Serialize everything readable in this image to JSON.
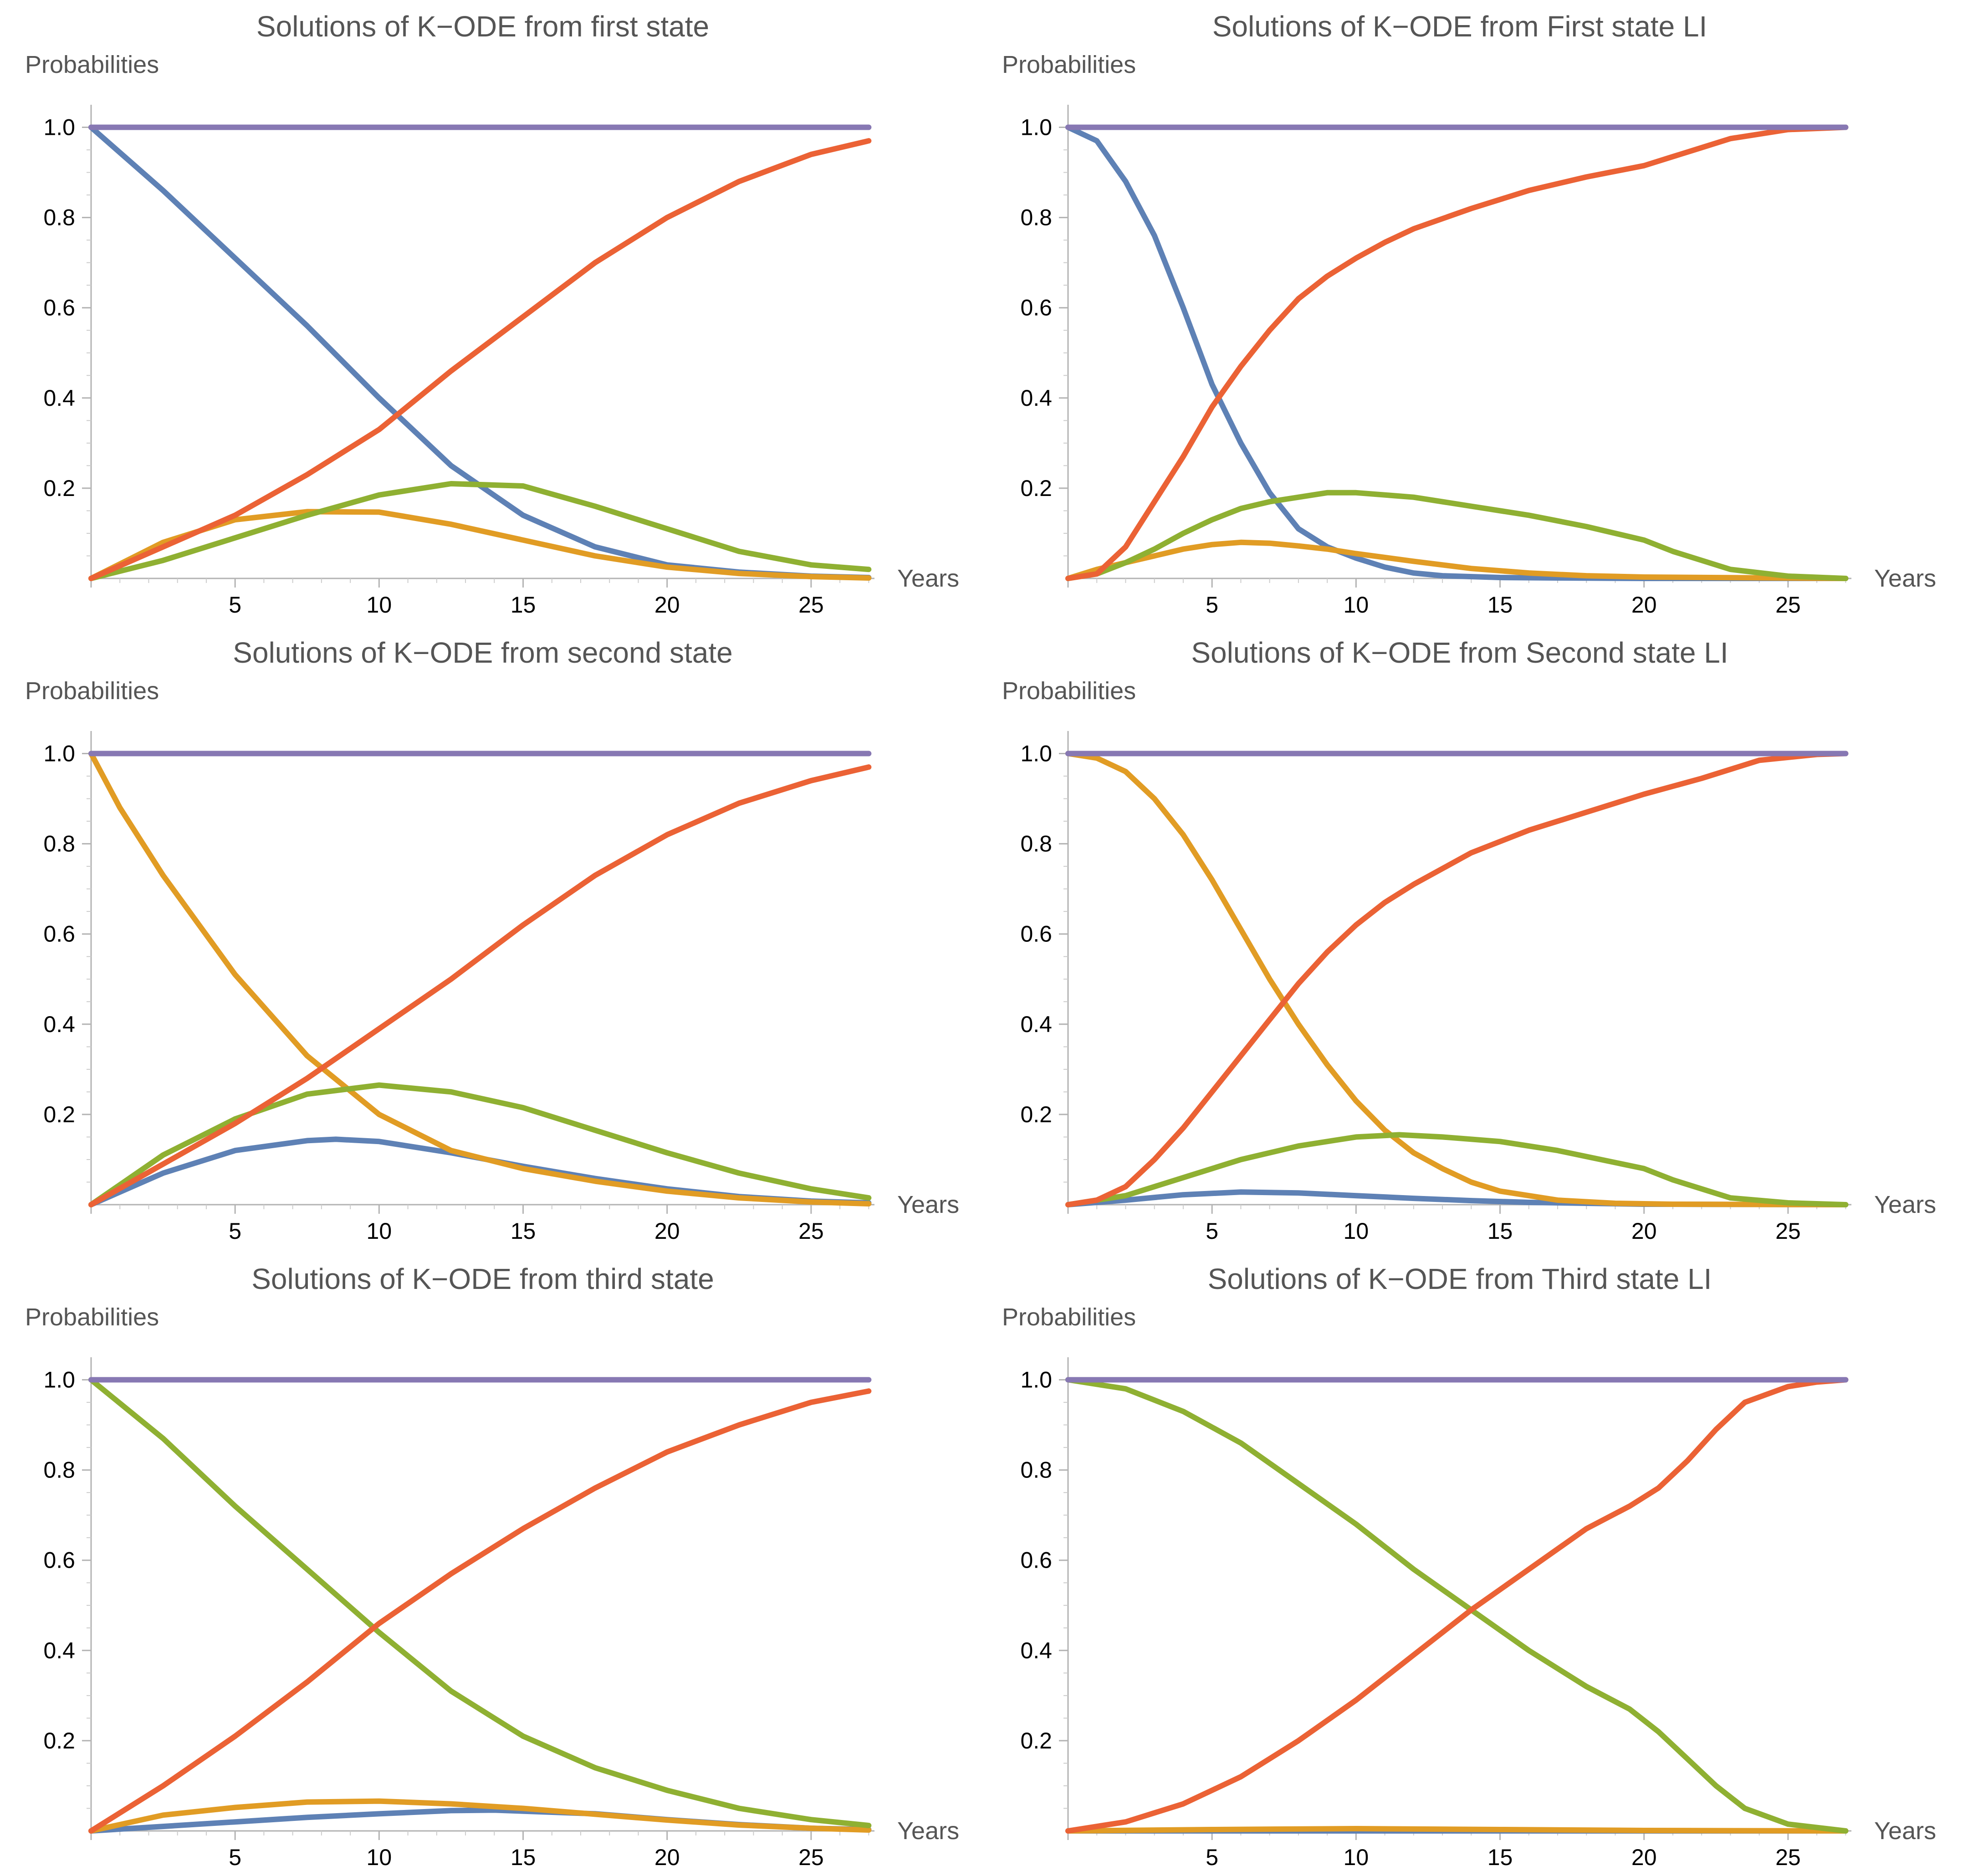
{
  "chart_data": [
    {
      "type": "line",
      "title": "Solutions of K−ODE from first state",
      "xlabel": "Years",
      "ylabel": "Probabilities",
      "xlim": [
        0,
        27.2
      ],
      "ylim": [
        0,
        1.05
      ],
      "xticks": [
        5,
        10,
        15,
        20,
        25
      ],
      "yticks": [
        0.2,
        0.4,
        0.6,
        0.8,
        1.0
      ],
      "xtick_labels": [
        "5",
        "10",
        "15",
        "20",
        "25"
      ],
      "ytick_labels": [
        "0.2",
        "0.4",
        "0.6",
        "0.8",
        "1.0"
      ],
      "series": [
        {
          "name": "blue",
          "color": "#5e81b5",
          "x": [
            0,
            2.5,
            5,
            7.5,
            10,
            12.5,
            15,
            17.5,
            20,
            22.5,
            25,
            27
          ],
          "y": [
            1.0,
            0.86,
            0.71,
            0.56,
            0.4,
            0.25,
            0.14,
            0.07,
            0.03,
            0.014,
            0.005,
            0.002
          ]
        },
        {
          "name": "orange",
          "color": "#e19c24",
          "x": [
            0,
            2.5,
            5,
            7.5,
            10,
            12.5,
            15,
            17.5,
            20,
            22.5,
            25,
            27
          ],
          "y": [
            0,
            0.08,
            0.13,
            0.148,
            0.147,
            0.12,
            0.085,
            0.05,
            0.025,
            0.011,
            0.004,
            0.001
          ]
        },
        {
          "name": "green",
          "color": "#8fb032",
          "x": [
            0,
            2.5,
            5,
            7.5,
            10,
            12.5,
            15,
            17.5,
            20,
            22.5,
            25,
            27
          ],
          "y": [
            0,
            0.04,
            0.09,
            0.14,
            0.185,
            0.21,
            0.205,
            0.16,
            0.11,
            0.06,
            0.03,
            0.02
          ]
        },
        {
          "name": "red",
          "color": "#eb6235",
          "x": [
            0,
            2.5,
            5,
            7.5,
            10,
            12.5,
            15,
            17.5,
            20,
            22.5,
            25,
            27
          ],
          "y": [
            0,
            0.07,
            0.14,
            0.23,
            0.33,
            0.46,
            0.58,
            0.7,
            0.8,
            0.88,
            0.94,
            0.97
          ]
        },
        {
          "name": "purple",
          "color": "#8778b3",
          "x": [
            0,
            27
          ],
          "y": [
            1.0,
            1.0
          ]
        }
      ]
    },
    {
      "type": "line",
      "title": "Solutions of K−ODE from First state LI",
      "xlabel": "Years",
      "ylabel": "Probabilities",
      "xlim": [
        0,
        27.2
      ],
      "ylim": [
        0,
        1.05
      ],
      "xticks": [
        5,
        10,
        15,
        20,
        25
      ],
      "yticks": [
        0.2,
        0.4,
        0.6,
        0.8,
        1.0
      ],
      "xtick_labels": [
        "5",
        "10",
        "15",
        "20",
        "25"
      ],
      "ytick_labels": [
        "0.2",
        "0.4",
        "0.6",
        "0.8",
        "1.0"
      ],
      "series": [
        {
          "name": "blue",
          "color": "#5e81b5",
          "x": [
            0,
            1,
            2,
            3,
            4,
            5,
            6,
            7,
            8,
            9,
            10,
            11,
            12,
            13,
            15,
            17,
            20,
            27
          ],
          "y": [
            1.0,
            0.97,
            0.88,
            0.76,
            0.6,
            0.43,
            0.3,
            0.19,
            0.11,
            0.07,
            0.045,
            0.025,
            0.012,
            0.006,
            0.002,
            0.001,
            0,
            0
          ]
        },
        {
          "name": "orange",
          "color": "#e19c24",
          "x": [
            0,
            1,
            2,
            3,
            4,
            5,
            6,
            7,
            8,
            9,
            10,
            12,
            14,
            16,
            18,
            20,
            27
          ],
          "y": [
            0,
            0.02,
            0.035,
            0.05,
            0.065,
            0.075,
            0.08,
            0.078,
            0.072,
            0.065,
            0.055,
            0.038,
            0.022,
            0.012,
            0.006,
            0.003,
            0
          ]
        },
        {
          "name": "green",
          "color": "#8fb032",
          "x": [
            0,
            1,
            2,
            3,
            4,
            5,
            6,
            7,
            8,
            9,
            10,
            12,
            14,
            16,
            18,
            20,
            21,
            23,
            25,
            27
          ],
          "y": [
            0,
            0.01,
            0.035,
            0.065,
            0.1,
            0.13,
            0.155,
            0.17,
            0.18,
            0.19,
            0.19,
            0.18,
            0.16,
            0.14,
            0.115,
            0.085,
            0.06,
            0.02,
            0.005,
            0
          ]
        },
        {
          "name": "red",
          "color": "#eb6235",
          "x": [
            0,
            1,
            2,
            3,
            4,
            5,
            6,
            7,
            8,
            9,
            10,
            11,
            12,
            14,
            16,
            18,
            20,
            21,
            22,
            23,
            25,
            27
          ],
          "y": [
            0,
            0.01,
            0.07,
            0.17,
            0.27,
            0.38,
            0.47,
            0.55,
            0.62,
            0.67,
            0.71,
            0.745,
            0.775,
            0.82,
            0.86,
            0.89,
            0.915,
            0.935,
            0.955,
            0.975,
            0.995,
            1.0
          ]
        },
        {
          "name": "purple",
          "color": "#8778b3",
          "x": [
            0,
            27
          ],
          "y": [
            1.0,
            1.0
          ]
        }
      ]
    },
    {
      "type": "line",
      "title": "Solutions of K−ODE from second state",
      "xlabel": "Years",
      "ylabel": "Probabilities",
      "xlim": [
        0,
        27.2
      ],
      "ylim": [
        0,
        1.05
      ],
      "xticks": [
        5,
        10,
        15,
        20,
        25
      ],
      "yticks": [
        0.2,
        0.4,
        0.6,
        0.8,
        1.0
      ],
      "xtick_labels": [
        "5",
        "10",
        "15",
        "20",
        "25"
      ],
      "ytick_labels": [
        "0.2",
        "0.4",
        "0.6",
        "0.8",
        "1.0"
      ],
      "series": [
        {
          "name": "blue",
          "color": "#5e81b5",
          "x": [
            0,
            2.5,
            5,
            7.5,
            8.5,
            10,
            12.5,
            15,
            17.5,
            20,
            22.5,
            25,
            27
          ],
          "y": [
            0,
            0.07,
            0.12,
            0.142,
            0.145,
            0.14,
            0.115,
            0.085,
            0.058,
            0.035,
            0.018,
            0.008,
            0.004
          ]
        },
        {
          "name": "orange",
          "color": "#e19c24",
          "x": [
            0,
            1,
            2.5,
            5,
            7.5,
            10,
            12.5,
            15,
            17.5,
            20,
            22.5,
            25,
            27
          ],
          "y": [
            1.0,
            0.88,
            0.73,
            0.51,
            0.33,
            0.2,
            0.12,
            0.08,
            0.052,
            0.03,
            0.015,
            0.006,
            0.002
          ]
        },
        {
          "name": "green",
          "color": "#8fb032",
          "x": [
            0,
            2.5,
            5,
            7.5,
            10,
            12.5,
            15,
            17.5,
            20,
            22.5,
            25,
            27
          ],
          "y": [
            0,
            0.11,
            0.19,
            0.245,
            0.265,
            0.25,
            0.215,
            0.165,
            0.115,
            0.07,
            0.035,
            0.015
          ]
        },
        {
          "name": "red",
          "color": "#eb6235",
          "x": [
            0,
            2.5,
            5,
            7.5,
            10,
            12.5,
            15,
            17.5,
            20,
            22.5,
            25,
            27
          ],
          "y": [
            0,
            0.09,
            0.18,
            0.28,
            0.39,
            0.5,
            0.62,
            0.73,
            0.82,
            0.89,
            0.94,
            0.97
          ]
        },
        {
          "name": "purple",
          "color": "#8778b3",
          "x": [
            0,
            27
          ],
          "y": [
            1.0,
            1.0
          ]
        }
      ]
    },
    {
      "type": "line",
      "title": "Solutions of K−ODE from Second state LI",
      "xlabel": "Years",
      "ylabel": "Probabilities",
      "xlim": [
        0,
        27.2
      ],
      "ylim": [
        0,
        1.05
      ],
      "xticks": [
        5,
        10,
        15,
        20,
        25
      ],
      "yticks": [
        0.2,
        0.4,
        0.6,
        0.8,
        1.0
      ],
      "xtick_labels": [
        "5",
        "10",
        "15",
        "20",
        "25"
      ],
      "ytick_labels": [
        "0.2",
        "0.4",
        "0.6",
        "0.8",
        "1.0"
      ],
      "series": [
        {
          "name": "blue",
          "color": "#5e81b5",
          "x": [
            0,
            2,
            4,
            6,
            8,
            10,
            12,
            14,
            16,
            18,
            20,
            27
          ],
          "y": [
            0,
            0.01,
            0.022,
            0.028,
            0.026,
            0.02,
            0.014,
            0.009,
            0.005,
            0.003,
            0.001,
            0
          ]
        },
        {
          "name": "orange",
          "color": "#e19c24",
          "x": [
            0,
            1,
            2,
            3,
            4,
            5,
            6,
            7,
            8,
            9,
            10,
            11,
            12,
            13,
            14,
            15,
            17,
            19,
            21,
            27
          ],
          "y": [
            1.0,
            0.99,
            0.96,
            0.9,
            0.82,
            0.72,
            0.61,
            0.5,
            0.4,
            0.31,
            0.23,
            0.165,
            0.115,
            0.08,
            0.05,
            0.03,
            0.01,
            0.003,
            0.001,
            0
          ]
        },
        {
          "name": "green",
          "color": "#8fb032",
          "x": [
            0,
            2,
            4,
            6,
            8,
            10,
            11.5,
            13,
            15,
            17,
            20,
            21,
            23,
            25,
            27
          ],
          "y": [
            0,
            0.02,
            0.06,
            0.1,
            0.13,
            0.15,
            0.155,
            0.15,
            0.14,
            0.12,
            0.08,
            0.055,
            0.015,
            0.004,
            0
          ]
        },
        {
          "name": "red",
          "color": "#eb6235",
          "x": [
            0,
            1,
            2,
            3,
            4,
            5,
            6,
            7,
            8,
            9,
            10,
            11,
            12,
            14,
            16,
            18,
            20,
            22,
            24,
            26,
            27
          ],
          "y": [
            0,
            0.01,
            0.04,
            0.1,
            0.17,
            0.25,
            0.33,
            0.41,
            0.49,
            0.56,
            0.62,
            0.67,
            0.71,
            0.78,
            0.83,
            0.87,
            0.91,
            0.945,
            0.985,
            0.998,
            1.0
          ]
        },
        {
          "name": "purple",
          "color": "#8778b3",
          "x": [
            0,
            27
          ],
          "y": [
            1.0,
            1.0
          ]
        }
      ]
    },
    {
      "type": "line",
      "title": "Solutions of K−ODE from third state",
      "xlabel": "Years",
      "ylabel": "Probabilities",
      "xlim": [
        0,
        27.2
      ],
      "ylim": [
        0,
        1.05
      ],
      "xticks": [
        5,
        10,
        15,
        20,
        25
      ],
      "yticks": [
        0.2,
        0.4,
        0.6,
        0.8,
        1.0
      ],
      "xtick_labels": [
        "5",
        "10",
        "15",
        "20",
        "25"
      ],
      "ytick_labels": [
        "0.2",
        "0.4",
        "0.6",
        "0.8",
        "1.0"
      ],
      "series": [
        {
          "name": "blue",
          "color": "#5e81b5",
          "x": [
            0,
            2.5,
            5,
            7.5,
            10,
            12.5,
            14,
            17.5,
            20,
            22.5,
            25,
            27
          ],
          "y": [
            0,
            0.01,
            0.02,
            0.03,
            0.038,
            0.045,
            0.046,
            0.038,
            0.025,
            0.014,
            0.006,
            0.003
          ]
        },
        {
          "name": "orange",
          "color": "#e19c24",
          "x": [
            0,
            2.5,
            5,
            7.5,
            10,
            12.5,
            15,
            17.5,
            20,
            22.5,
            25,
            27
          ],
          "y": [
            0,
            0.035,
            0.052,
            0.064,
            0.066,
            0.06,
            0.05,
            0.037,
            0.024,
            0.013,
            0.006,
            0.002
          ]
        },
        {
          "name": "green",
          "color": "#8fb032",
          "x": [
            0,
            2.5,
            5,
            7.5,
            10,
            12.5,
            15,
            17.5,
            20,
            22.5,
            25,
            27
          ],
          "y": [
            1.0,
            0.87,
            0.72,
            0.58,
            0.44,
            0.31,
            0.21,
            0.14,
            0.09,
            0.05,
            0.025,
            0.012
          ]
        },
        {
          "name": "red",
          "color": "#eb6235",
          "x": [
            0,
            2.5,
            5,
            7.5,
            10,
            12.5,
            15,
            17.5,
            20,
            22.5,
            25,
            27
          ],
          "y": [
            0,
            0.1,
            0.21,
            0.33,
            0.46,
            0.57,
            0.67,
            0.76,
            0.84,
            0.9,
            0.95,
            0.975
          ]
        },
        {
          "name": "purple",
          "color": "#8778b3",
          "x": [
            0,
            27
          ],
          "y": [
            1.0,
            1.0
          ]
        }
      ]
    },
    {
      "type": "line",
      "title": "Solutions of K−ODE from Third state LI",
      "xlabel": "Years",
      "ylabel": "Probabilities",
      "xlim": [
        0,
        27.2
      ],
      "ylim": [
        0,
        1.05
      ],
      "xticks": [
        5,
        10,
        15,
        20,
        25
      ],
      "yticks": [
        0.2,
        0.4,
        0.6,
        0.8,
        1.0
      ],
      "xtick_labels": [
        "5",
        "10",
        "15",
        "20",
        "25"
      ],
      "ytick_labels": [
        "0.2",
        "0.4",
        "0.6",
        "0.8",
        "1.0"
      ],
      "series": [
        {
          "name": "blue",
          "color": "#5e81b5",
          "x": [
            0,
            27
          ],
          "y": [
            0,
            0
          ]
        },
        {
          "name": "orange",
          "color": "#e19c24",
          "x": [
            0,
            5,
            10,
            15,
            20,
            27
          ],
          "y": [
            0,
            0.003,
            0.005,
            0.003,
            0.001,
            0
          ]
        },
        {
          "name": "green",
          "color": "#8fb032",
          "x": [
            0,
            2,
            4,
            6,
            8,
            10,
            12,
            14,
            16,
            18,
            19.5,
            20.5,
            21.5,
            22.5,
            23.5,
            25,
            27
          ],
          "y": [
            1.0,
            0.98,
            0.93,
            0.86,
            0.77,
            0.68,
            0.58,
            0.49,
            0.4,
            0.32,
            0.27,
            0.22,
            0.16,
            0.1,
            0.05,
            0.015,
            0
          ]
        },
        {
          "name": "red",
          "color": "#eb6235",
          "x": [
            0,
            2,
            4,
            6,
            8,
            10,
            12,
            14,
            16,
            18,
            19.5,
            20.5,
            21.5,
            22.5,
            23.5,
            25,
            26,
            27
          ],
          "y": [
            0,
            0.02,
            0.06,
            0.12,
            0.2,
            0.29,
            0.39,
            0.49,
            0.58,
            0.67,
            0.72,
            0.76,
            0.82,
            0.89,
            0.95,
            0.985,
            0.995,
            1.0
          ]
        },
        {
          "name": "purple",
          "color": "#8778b3",
          "x": [
            0,
            27
          ],
          "y": [
            1.0,
            1.0
          ]
        }
      ]
    }
  ]
}
